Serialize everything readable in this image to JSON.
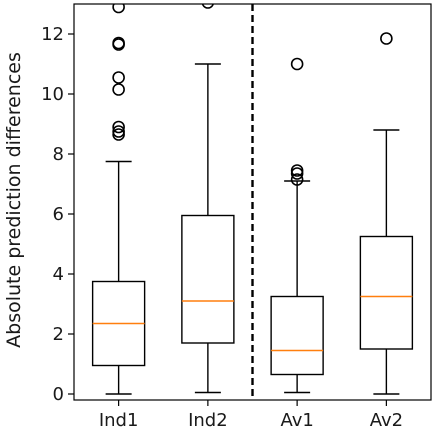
{
  "chart_data": {
    "type": "box",
    "title": "",
    "xlabel": "",
    "ylabel": "Absolute prediction differences",
    "ylim": [
      -0.2,
      13.0
    ],
    "yticks": [
      0,
      2,
      4,
      6,
      8,
      10,
      12
    ],
    "grid": false,
    "categories": [
      "Ind1",
      "Ind2",
      "Av1",
      "Av2"
    ],
    "boxes": [
      {
        "name": "Ind1",
        "whisker_low": 0.0,
        "q1": 0.95,
        "median": 2.35,
        "q3": 3.75,
        "whisker_high": 7.75,
        "outliers": [
          8.65,
          8.75,
          8.9,
          10.15,
          10.55,
          11.65,
          11.7,
          12.9
        ]
      },
      {
        "name": "Ind2",
        "whisker_low": 0.05,
        "q1": 1.7,
        "median": 3.1,
        "q3": 5.95,
        "whisker_high": 11.0,
        "outliers": [
          13.05
        ]
      },
      {
        "name": "Av1",
        "whisker_low": 0.05,
        "q1": 0.65,
        "median": 1.45,
        "q3": 3.25,
        "whisker_high": 7.1,
        "outliers": [
          7.15,
          7.35,
          7.45,
          11.0
        ]
      },
      {
        "name": "Av2",
        "whisker_low": 0.0,
        "q1": 1.5,
        "median": 3.25,
        "q3": 5.25,
        "whisker_high": 8.8,
        "outliers": [
          11.85
        ]
      }
    ],
    "separator": {
      "after_category": "Ind2",
      "style": "dashed"
    },
    "colors": {
      "box": "#000000",
      "median": "#ff7f0e",
      "outlier": "#000000",
      "separator": "#000000"
    }
  }
}
